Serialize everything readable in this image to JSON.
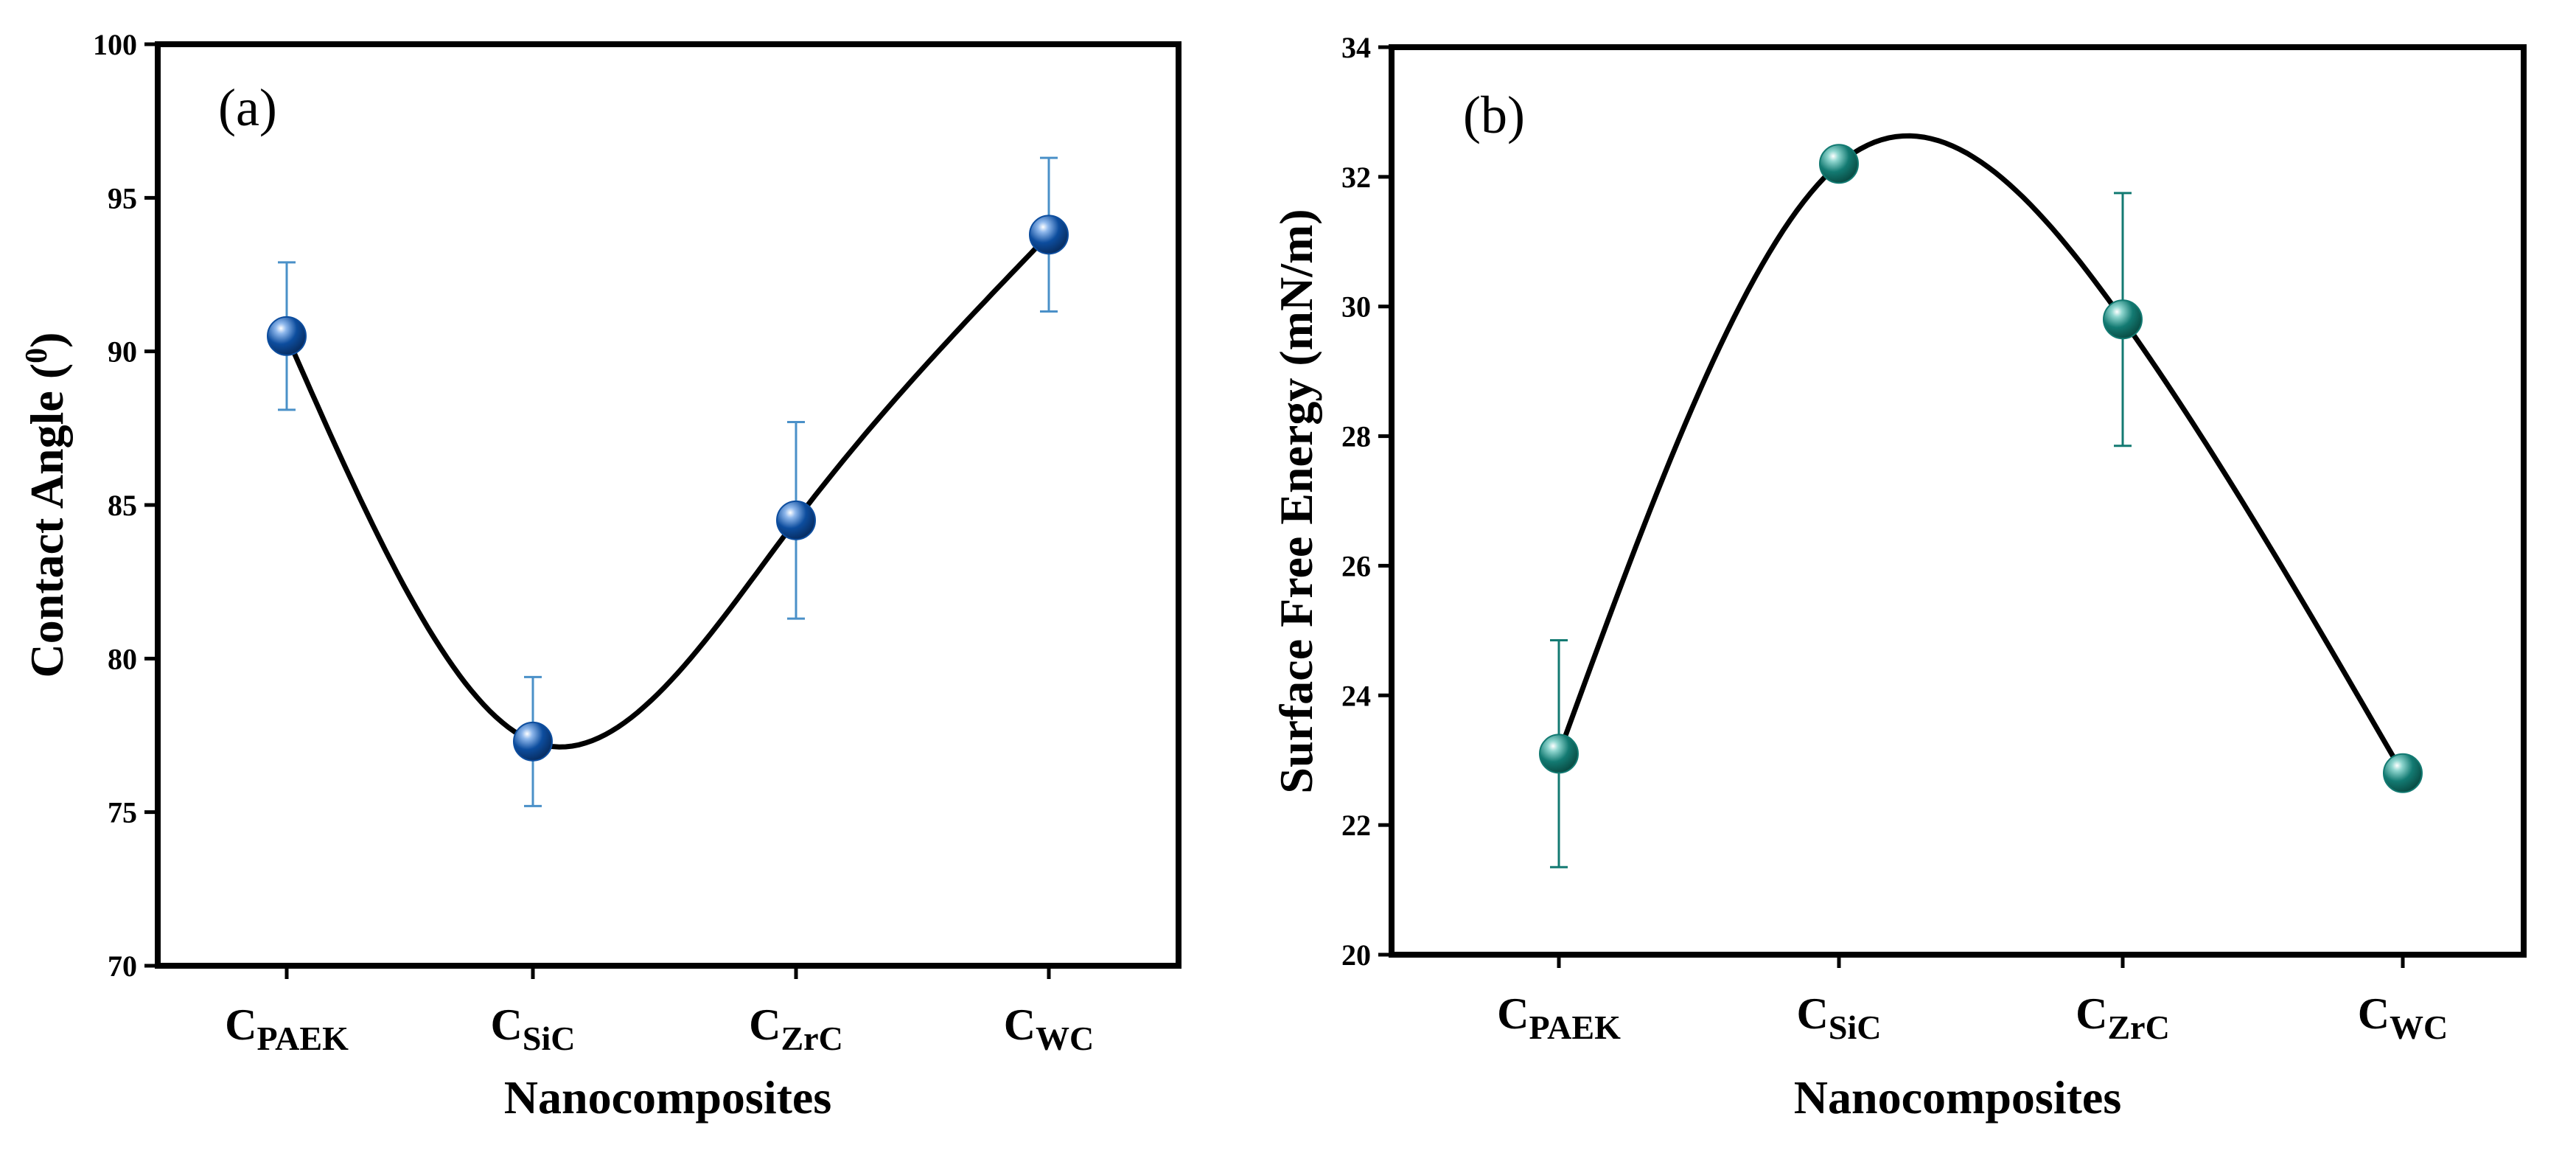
{
  "chart_data": [
    {
      "type": "line",
      "panel_label": "(a)",
      "title": "",
      "xlabel": "Nanocomposites",
      "ylabel": "Contact Angle (",
      "ylabel_sup": "0",
      "ylabel_end": ")",
      "categories": [
        {
          "base": "C",
          "sub": "PAEK"
        },
        {
          "base": "C",
          "sub": "SiC"
        },
        {
          "base": "C",
          "sub": "ZrC"
        },
        {
          "base": "C",
          "sub": "WC"
        }
      ],
      "series": [
        {
          "name": "Contact Angle",
          "values": [
            90.5,
            77.3,
            84.5,
            93.8
          ],
          "errors": [
            2.4,
            2.1,
            3.2,
            2.5
          ],
          "color": "#0d4d9e",
          "errorbar_color": "#4a90c8"
        }
      ],
      "ylim": [
        70,
        100
      ],
      "yticks": [
        70,
        75,
        80,
        85,
        90,
        95,
        100
      ],
      "grid": false,
      "curve": "smooth"
    },
    {
      "type": "line",
      "panel_label": "(b)",
      "title": "",
      "xlabel": "Nanocomposites",
      "ylabel": "Surface Free Energy (mN/m)",
      "categories": [
        {
          "base": "C",
          "sub": "PAEK"
        },
        {
          "base": "C",
          "sub": "SiC"
        },
        {
          "base": "C",
          "sub": "ZrC"
        },
        {
          "base": "C",
          "sub": "WC"
        }
      ],
      "series": [
        {
          "name": "Surface Free Energy",
          "values": [
            23.1,
            32.2,
            29.8,
            22.8
          ],
          "errors": [
            1.75,
            0.0,
            1.95,
            0.1
          ],
          "color": "#137a72",
          "errorbar_color": "#137a72"
        }
      ],
      "ylim": [
        20,
        34
      ],
      "yticks": [
        20,
        22,
        24,
        26,
        28,
        30,
        32,
        34
      ],
      "grid": false,
      "curve": "smooth"
    }
  ]
}
